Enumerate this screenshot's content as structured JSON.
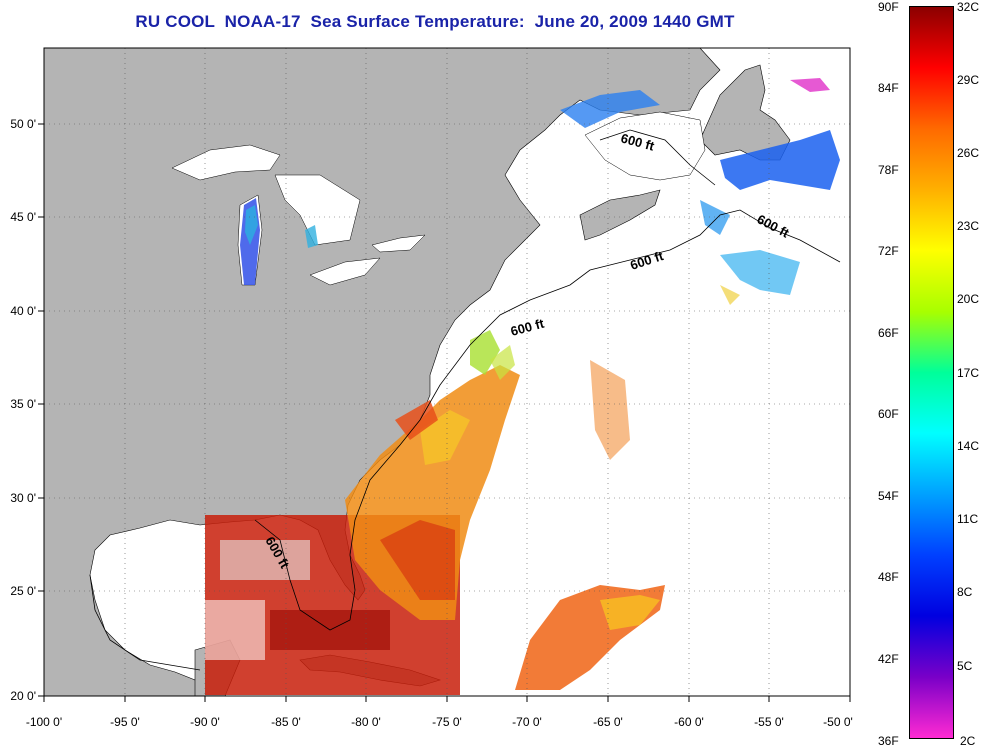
{
  "title": "RU COOL  NOAA-17  Sea Surface Temperature:  June 20, 2009 1440 GMT",
  "map": {
    "lon_labels": [
      "-100 0'",
      "-95 0'",
      "-90 0'",
      "-85 0'",
      "-80 0'",
      "-75 0'",
      "-70 0'",
      "-65 0'",
      "-60 0'",
      "-55 0'",
      "-50 0'"
    ],
    "lat_labels": [
      "50 0'",
      "45 0'",
      "40 0'",
      "35 0'",
      "30 0'",
      "25 0'",
      "20 0'"
    ],
    "contour_labels": [
      "600 ft",
      "600 ft",
      "600 ft",
      "600 ft",
      "600 ft"
    ],
    "land_color": "#b4b4b4",
    "ocean_color": "#ffffff"
  },
  "colorbar": {
    "f_labels": [
      "90F",
      "84F",
      "78F",
      "72F",
      "66F",
      "60F",
      "54F",
      "48F",
      "42F",
      "36F"
    ],
    "c_labels": [
      "32C",
      "29C",
      "26C",
      "23C",
      "20C",
      "17C",
      "14C",
      "11C",
      "8C",
      "5C",
      "2C"
    ],
    "colors_top_to_bottom": [
      "#8b0000",
      "#ff0000",
      "#ff6a00",
      "#ffb000",
      "#ffff00",
      "#a8ff00",
      "#00ff9a",
      "#00ffff",
      "#00a0ff",
      "#0040ff",
      "#0000e0",
      "#7a00c8",
      "#ff2ad2"
    ]
  }
}
